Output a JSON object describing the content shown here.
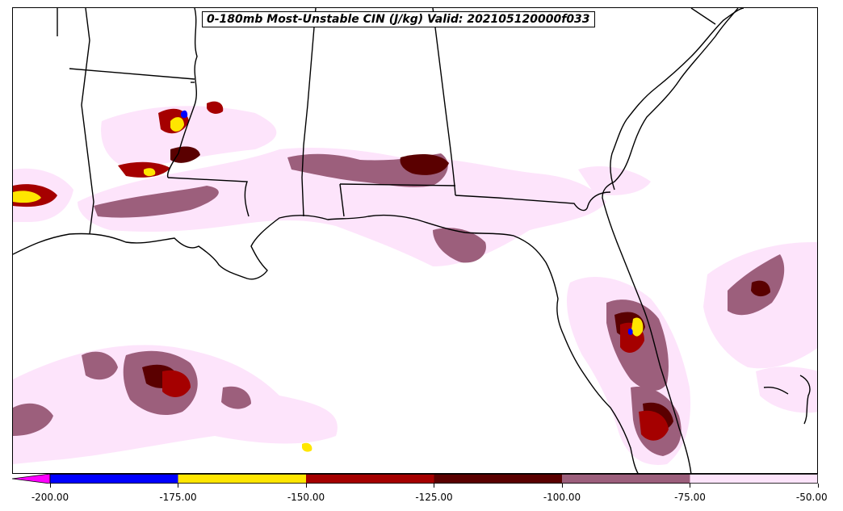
{
  "title": "0-180mb Most-Unstable CIN (J/kg) Valid: 202105120000f033",
  "colorbar": {
    "extend": "min",
    "under_color": "#ff00ff",
    "bins": [
      {
        "from": -200,
        "to": -175,
        "color": "#0000ff"
      },
      {
        "from": -175,
        "to": -150,
        "color": "#ffe600"
      },
      {
        "from": -150,
        "to": -125,
        "color": "#a50000"
      },
      {
        "from": -125,
        "to": -100,
        "color": "#5a0000"
      },
      {
        "from": -100,
        "to": -75,
        "color": "#9c5f7c"
      },
      {
        "from": -75,
        "to": -50,
        "color": "#fde4fb"
      }
    ],
    "ticks": [
      "-200.00",
      "-175.00",
      "-150.00",
      "-125.00",
      "-100.00",
      "-75.00",
      "-50.00"
    ]
  },
  "colors": {
    "ocean": "#ffffff",
    "land": "#ffffff",
    "borders": "#000000"
  }
}
